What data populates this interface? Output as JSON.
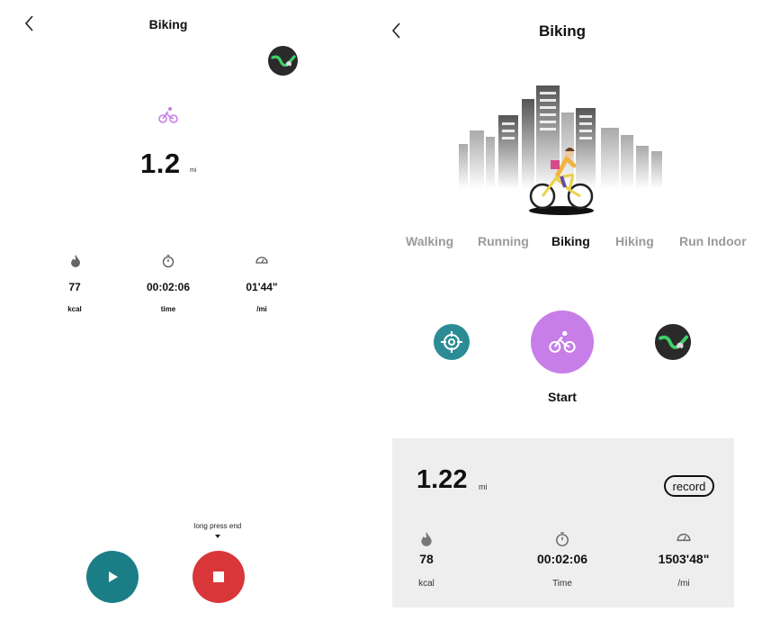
{
  "left": {
    "title": "Biking",
    "distance": "1.2",
    "distance_unit": "mi",
    "stats": [
      {
        "icon": "flame-icon",
        "value": "77",
        "label": "kcal"
      },
      {
        "icon": "stopwatch-icon",
        "value": "00:02:06",
        "label": "time"
      },
      {
        "icon": "speedometer-icon",
        "value": "01'44\"",
        "label": "/mi"
      }
    ],
    "hint": "long press end",
    "play_icon": "play-icon",
    "stop_icon": "stop-icon"
  },
  "right": {
    "title": "Biking",
    "sport_tabs": [
      {
        "label": "Walking",
        "active": false
      },
      {
        "label": "Running",
        "active": false
      },
      {
        "label": "Biking",
        "active": true
      },
      {
        "label": "Hiking",
        "active": false
      },
      {
        "label": "Run Indoor",
        "active": false
      }
    ],
    "start_label": "Start",
    "summary": {
      "distance": "1.22",
      "distance_unit": "mi",
      "record_label": "record",
      "stats": [
        {
          "icon": "flame-icon",
          "value": "78",
          "label": "kcal"
        },
        {
          "icon": "stopwatch-icon",
          "value": "00:02:06",
          "label": "Time"
        },
        {
          "icon": "speedometer-icon",
          "value": "1503'48\"",
          "label": "/mi"
        }
      ]
    }
  },
  "colors": {
    "accent_purple": "#c77ee8",
    "teal": "#1b7e86",
    "stop_red": "#d9363a",
    "map_green": "#3ed06a",
    "panel_gray": "#eeeeee"
  }
}
